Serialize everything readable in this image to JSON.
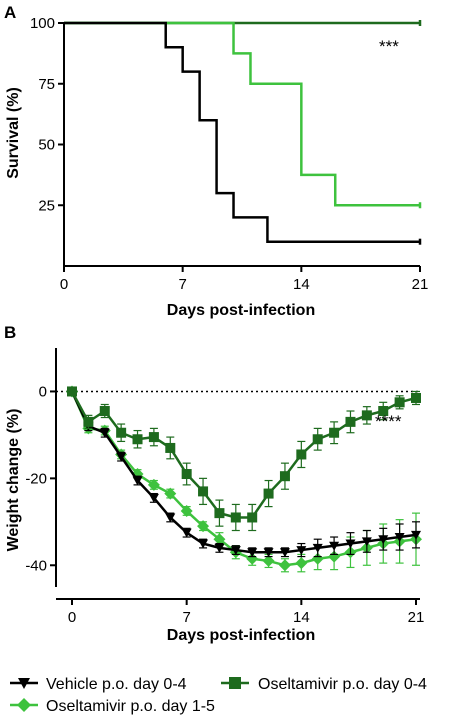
{
  "chart_data": [
    {
      "panel": "A",
      "type": "line",
      "step": true,
      "xlabel": "Days post-infection",
      "ylabel": "Survival (%)",
      "xlim": [
        0,
        21
      ],
      "ylim": [
        0,
        100
      ],
      "xticks": [
        0,
        7,
        14,
        21
      ],
      "yticks": [
        25,
        50,
        75,
        100
      ],
      "annotation": "***",
      "series": [
        {
          "color": "#1e6b1e",
          "x": [
            0,
            21
          ],
          "y": [
            100,
            100
          ]
        },
        {
          "color": "#3ec23e",
          "x": [
            0,
            10,
            11,
            14,
            16,
            21
          ],
          "y": [
            100,
            87.5,
            75,
            37.5,
            25,
            25
          ]
        },
        {
          "color": "#000000",
          "x": [
            0,
            6,
            7,
            8,
            9,
            10,
            12,
            21
          ],
          "y": [
            100,
            90,
            80,
            60,
            30,
            20,
            10,
            10
          ]
        }
      ]
    },
    {
      "panel": "B",
      "type": "line",
      "xlabel": "Days post-infection",
      "ylabel": "Weight change  (%)",
      "xlim": [
        0,
        21
      ],
      "ylim": [
        -45,
        10
      ],
      "xticks": [
        0,
        7,
        14,
        21
      ],
      "yticks": [
        0,
        -20,
        -40
      ],
      "annotation": "****",
      "series": [
        {
          "name": "Vehicle p.o. day 0-4",
          "color": "#000000",
          "marker": "triangle-down",
          "x": [
            0,
            1,
            2,
            3,
            4,
            5,
            6,
            7,
            8,
            9,
            10,
            11,
            12,
            13,
            14,
            15,
            16,
            17,
            18,
            19,
            20,
            21
          ],
          "y": [
            0,
            -8,
            -9.5,
            -15,
            -20.5,
            -24.5,
            -29,
            -32.5,
            -35,
            -36,
            -36.5,
            -37,
            -37,
            -37,
            -36.5,
            -36,
            -35.5,
            -35,
            -34.5,
            -34,
            -33.5,
            -33
          ],
          "err": [
            0,
            1,
            1,
            1,
            1,
            1,
            1,
            1,
            1,
            1,
            1,
            1,
            1,
            1,
            1.5,
            2,
            2,
            2.5,
            2.5,
            2.5,
            3,
            3
          ]
        },
        {
          "name": "Oseltamivir p.o. day 0-4",
          "color": "#1e6b1e",
          "marker": "square",
          "x": [
            0,
            1,
            2,
            3,
            4,
            5,
            6,
            7,
            8,
            9,
            10,
            11,
            12,
            13,
            14,
            15,
            16,
            17,
            18,
            19,
            20,
            21
          ],
          "y": [
            0,
            -7,
            -4.5,
            -9.5,
            -11,
            -10.5,
            -13,
            -19,
            -23,
            -28,
            -29,
            -29,
            -23.5,
            -19.5,
            -14.5,
            -11,
            -9.5,
            -7,
            -5.5,
            -4.5,
            -2.5,
            -1.5
          ],
          "err": [
            0,
            1.5,
            1.5,
            2,
            2,
            2,
            2.5,
            2.5,
            3,
            3,
            3,
            3,
            3,
            3,
            3,
            2.5,
            2.5,
            2.5,
            2,
            2,
            1.5,
            1.5
          ]
        },
        {
          "name": "Oseltamivir p.o. day 1-5",
          "color": "#3ec23e",
          "marker": "diamond",
          "x": [
            0,
            1,
            2,
            3,
            4,
            5,
            6,
            7,
            8,
            9,
            10,
            11,
            12,
            13,
            14,
            15,
            16,
            17,
            18,
            19,
            20,
            21
          ],
          "y": [
            0,
            -8.5,
            -9,
            -14.5,
            -19,
            -21.5,
            -23.5,
            -27.5,
            -31,
            -34,
            -37,
            -38.5,
            -39,
            -40,
            -39.5,
            -38.5,
            -38,
            -37,
            -36,
            -35,
            -34.5,
            -34
          ],
          "err": [
            0,
            1,
            1,
            1,
            1,
            1,
            1,
            1,
            1,
            1.5,
            1.5,
            1.5,
            1.5,
            1.5,
            2,
            2.5,
            3,
            3.5,
            4,
            4.5,
            5,
            6
          ]
        }
      ]
    }
  ]
}
